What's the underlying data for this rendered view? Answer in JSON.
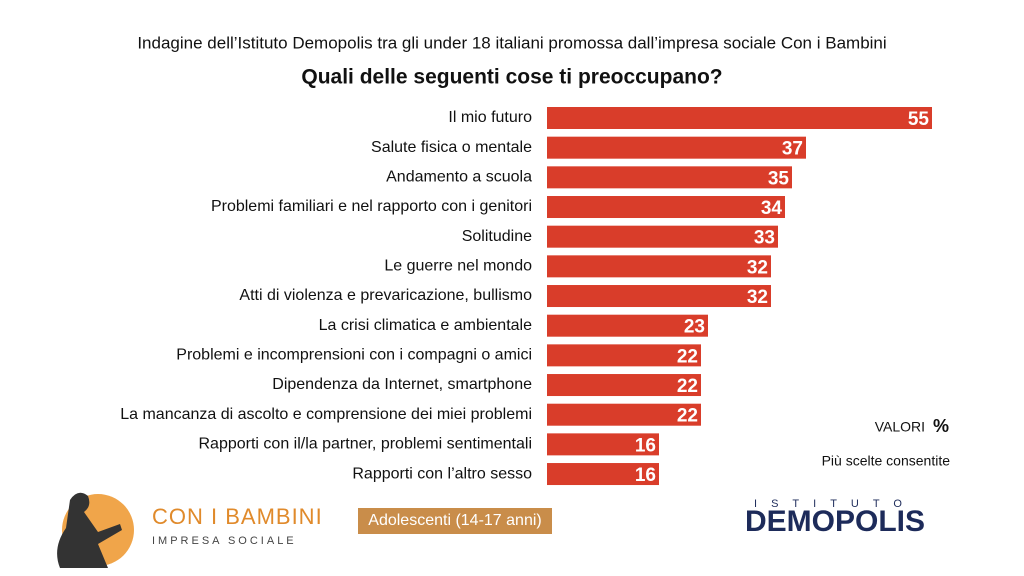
{
  "chart_data": {
    "type": "barh",
    "subtitle": "Indagine dell’Istituto Demopolis tra gli under 18 italiani promossa dall’impresa sociale Con i Bambini",
    "title": "Quali delle seguenti cose ti preoccupano?",
    "categories": [
      "Il mio futuro",
      "Salute fisica o mentale",
      "Andamento a scuola",
      "Problemi familiari e nel rapporto con i genitori",
      "Solitudine",
      "Le guerre nel mondo",
      "Atti di violenza e prevaricazione, bullismo",
      "La crisi climatica e ambientale",
      "Problemi e incomprensioni con i compagni o amici",
      "Dipendenza da Internet, smartphone",
      "La mancanza di ascolto e comprensione dei miei problemi",
      "Rapporti con il/la partner, problemi sentimentali",
      "Rapporti con l’altro sesso"
    ],
    "values": [
      55,
      37,
      35,
      34,
      33,
      32,
      32,
      23,
      22,
      22,
      22,
      16,
      16
    ],
    "color": "#d93d2a",
    "unit_label": "VALORI",
    "unit_symbol": "%",
    "note": "Più scelte consentite",
    "group_label": "Adolescenti (14-17 anni)"
  },
  "logos": {
    "con_i_bambini": {
      "name": "CON I BAMBINI",
      "tagline": "IMPRESA SOCIALE"
    },
    "demopolis": {
      "top": "ISTITUTO",
      "name": "DEMOPOLIS"
    }
  }
}
